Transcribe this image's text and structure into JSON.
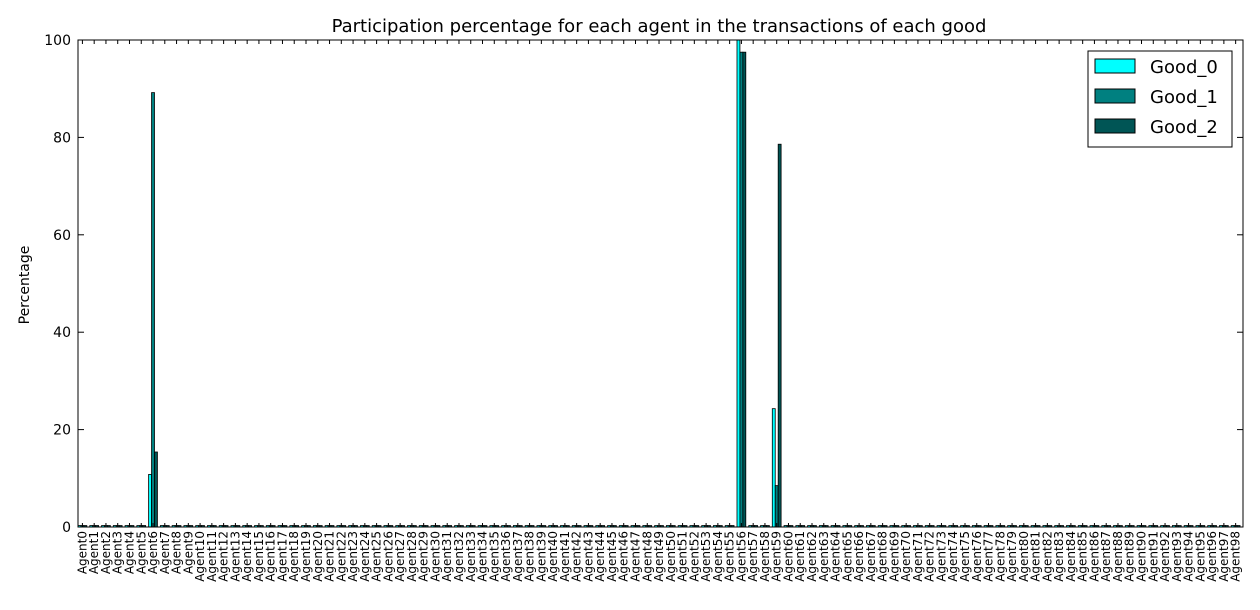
{
  "chart_data": {
    "type": "bar",
    "title": "Participation percentage for each agent in the transactions of each good",
    "xlabel": "",
    "ylabel": "Percentage",
    "ylim": [
      0,
      100
    ],
    "yticks": [
      0,
      20,
      40,
      60,
      80,
      100
    ],
    "grid": false,
    "legend_position": "top-right",
    "categories": [
      "Agent0",
      "Agent1",
      "Agent2",
      "Agent3",
      "Agent4",
      "Agent5",
      "Agent6",
      "Agent7",
      "Agent8",
      "Agent9",
      "Agent10",
      "Agent11",
      "Agent12",
      "Agent13",
      "Agent14",
      "Agent15",
      "Agent16",
      "Agent17",
      "Agent18",
      "Agent19",
      "Agent20",
      "Agent21",
      "Agent22",
      "Agent23",
      "Agent24",
      "Agent25",
      "Agent26",
      "Agent27",
      "Agent28",
      "Agent29",
      "Agent30",
      "Agent31",
      "Agent32",
      "Agent33",
      "Agent34",
      "Agent35",
      "Agent36",
      "Agent37",
      "Agent38",
      "Agent39",
      "Agent40",
      "Agent41",
      "Agent42",
      "Agent43",
      "Agent44",
      "Agent45",
      "Agent46",
      "Agent47",
      "Agent48",
      "Agent49",
      "Agent50",
      "Agent51",
      "Agent52",
      "Agent53",
      "Agent54",
      "Agent55",
      "Agent56",
      "Agent57",
      "Agent58",
      "Agent59",
      "Agent60",
      "Agent61",
      "Agent62",
      "Agent63",
      "Agent64",
      "Agent65",
      "Agent66",
      "Agent67",
      "Agent68",
      "Agent69",
      "Agent70",
      "Agent71",
      "Agent72",
      "Agent73",
      "Agent74",
      "Agent75",
      "Agent76",
      "Agent77",
      "Agent78",
      "Agent79",
      "Agent80",
      "Agent81",
      "Agent82",
      "Agent83",
      "Agent84",
      "Agent85",
      "Agent86",
      "Agent87",
      "Agent88",
      "Agent89",
      "Agent90",
      "Agent91",
      "Agent92",
      "Agent93",
      "Agent94",
      "Agent95",
      "Agent96",
      "Agent97",
      "Agent98"
    ],
    "series": [
      {
        "name": "Good_0",
        "color": "#00ffff",
        "values": [
          0.3,
          0.3,
          0.3,
          0.3,
          0.3,
          0.3,
          10.8,
          0.3,
          0.3,
          0.3,
          0.3,
          0.3,
          0.3,
          0.3,
          0.3,
          0.3,
          0.3,
          0.3,
          0.3,
          0.3,
          0.3,
          0.3,
          0.3,
          0.3,
          0.3,
          0.3,
          0.3,
          0.3,
          0.3,
          0.3,
          0.3,
          0.3,
          0.3,
          0.3,
          0.3,
          0.3,
          0.3,
          0.3,
          0.3,
          0.3,
          0.3,
          0.3,
          0.3,
          0.3,
          0.3,
          0.3,
          0.3,
          0.3,
          0.3,
          0.3,
          0.3,
          0.3,
          0.3,
          0.3,
          0.3,
          0.3,
          100,
          0.3,
          0.3,
          24.3,
          0.3,
          0.3,
          0.3,
          0.3,
          0.3,
          0.3,
          0.3,
          0.3,
          0.3,
          0.3,
          0.3,
          0.3,
          0.3,
          0.3,
          0.3,
          0.3,
          0.3,
          0.3,
          0.3,
          0.3,
          0.3,
          0.3,
          0.3,
          0.3,
          0.3,
          0.3,
          0.3,
          0.3,
          0.3,
          0.3,
          0.3,
          0.3,
          0.3,
          0.3,
          0.3,
          0.3,
          0.3,
          0.3,
          0.3
        ]
      },
      {
        "name": "Good_1",
        "color": "#008080",
        "values": [
          0.3,
          0.3,
          0.3,
          0.3,
          0.3,
          0.3,
          89.2,
          0.3,
          0.3,
          0.3,
          0.3,
          0.3,
          0.3,
          0.3,
          0.3,
          0.3,
          0.3,
          0.3,
          0.3,
          0.3,
          0.3,
          0.3,
          0.3,
          0.3,
          0.3,
          0.3,
          0.3,
          0.3,
          0.3,
          0.3,
          0.3,
          0.3,
          0.3,
          0.3,
          0.3,
          0.3,
          0.3,
          0.3,
          0.3,
          0.3,
          0.3,
          0.3,
          0.3,
          0.3,
          0.3,
          0.3,
          0.3,
          0.3,
          0.3,
          0.3,
          0.3,
          0.3,
          0.3,
          0.3,
          0.3,
          0.3,
          97.5,
          0.3,
          0.3,
          8.5,
          0.3,
          0.3,
          0.3,
          0.3,
          0.3,
          0.3,
          0.3,
          0.3,
          0.3,
          0.3,
          0.3,
          0.3,
          0.3,
          0.3,
          0.3,
          0.3,
          0.3,
          0.3,
          0.3,
          0.3,
          0.3,
          0.3,
          0.3,
          0.3,
          0.3,
          0.3,
          0.3,
          0.3,
          0.3,
          0.3,
          0.3,
          0.3,
          0.3,
          0.3,
          0.3,
          0.3,
          0.3,
          0.3,
          0.3
        ]
      },
      {
        "name": "Good_2",
        "color": "#005555",
        "values": [
          0.3,
          0.3,
          0.3,
          0.3,
          0.3,
          0.3,
          15.4,
          0.3,
          0.3,
          0.3,
          0.3,
          0.3,
          0.3,
          0.3,
          0.3,
          0.3,
          0.3,
          0.3,
          0.3,
          0.3,
          0.3,
          0.3,
          0.3,
          0.3,
          0.3,
          0.3,
          0.3,
          0.3,
          0.3,
          0.3,
          0.3,
          0.3,
          0.3,
          0.3,
          0.3,
          0.3,
          0.3,
          0.3,
          0.3,
          0.3,
          0.3,
          0.3,
          0.3,
          0.3,
          0.3,
          0.3,
          0.3,
          0.3,
          0.3,
          0.3,
          0.3,
          0.3,
          0.3,
          0.3,
          0.3,
          0.3,
          97.5,
          0.3,
          0.3,
          78.6,
          0.3,
          0.3,
          0.3,
          0.3,
          0.3,
          0.3,
          0.3,
          0.3,
          0.3,
          0.3,
          0.3,
          0.3,
          0.3,
          0.3,
          0.3,
          0.3,
          0.3,
          0.3,
          0.3,
          0.3,
          0.3,
          0.3,
          0.3,
          0.3,
          0.3,
          0.3,
          0.3,
          0.3,
          0.3,
          0.3,
          0.3,
          0.3,
          0.3,
          0.3,
          0.3,
          0.3,
          0.3,
          0.3,
          0.3
        ]
      }
    ]
  }
}
